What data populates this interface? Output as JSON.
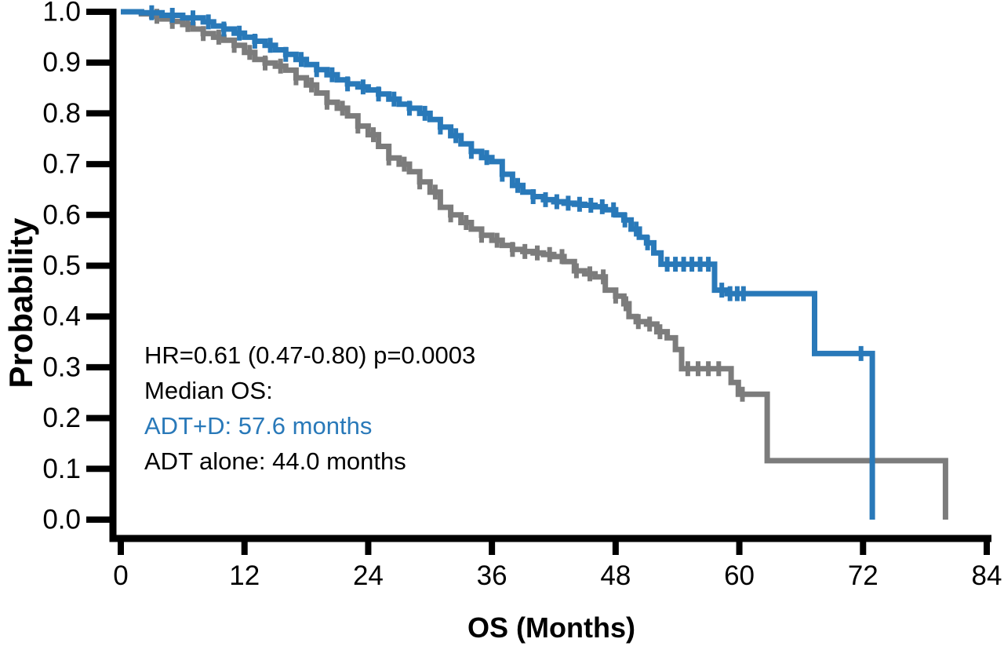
{
  "figure": {
    "background_color": "#ffffff",
    "axis_color": "#000000"
  },
  "annotation": {
    "hr_line": "HR=0.61 (0.47-0.80) p=0.0003",
    "median_heading": "Median OS:",
    "median_adt_d": "ADT+D: 57.6 months",
    "median_adt_alone": "ADT alone: 44.0 months"
  },
  "chart_data": {
    "type": "line",
    "subtype": "kaplan-meier-step",
    "title": "",
    "xlabel": "OS (Months)",
    "ylabel": "Probability",
    "xlim": [
      0,
      84
    ],
    "ylim": [
      0.0,
      1.0
    ],
    "grid": false,
    "x_tick_labels": [
      "0",
      "12",
      "24",
      "36",
      "48",
      "60",
      "72",
      "84"
    ],
    "y_tick_labels": [
      "1.0",
      "0.9",
      "0.8",
      "0.7",
      "0.6",
      "0.5",
      "0.4",
      "0.3",
      "0.2",
      "0.1",
      "0.0"
    ],
    "hazard_ratio_text": "HR=0.61 (0.47-0.80)",
    "p_value_text": "p=0.0003",
    "series": [
      {
        "name": "ADT+D",
        "color": "#2979b9",
        "median_os_months": 57.6,
        "points": [
          [
            0,
            1.0
          ],
          [
            2,
            0.998
          ],
          [
            4,
            0.993
          ],
          [
            6,
            0.988
          ],
          [
            8,
            0.98
          ],
          [
            9,
            0.972
          ],
          [
            10,
            0.966
          ],
          [
            11,
            0.958
          ],
          [
            12,
            0.95
          ],
          [
            13,
            0.942
          ],
          [
            14,
            0.934
          ],
          [
            15,
            0.925
          ],
          [
            16,
            0.916
          ],
          [
            17,
            0.906
          ],
          [
            18,
            0.896
          ],
          [
            19,
            0.886
          ],
          [
            20,
            0.876
          ],
          [
            21,
            0.866
          ],
          [
            22,
            0.858
          ],
          [
            23,
            0.852
          ],
          [
            24,
            0.846
          ],
          [
            25,
            0.838
          ],
          [
            26,
            0.828
          ],
          [
            27,
            0.818
          ],
          [
            28,
            0.81
          ],
          [
            29,
            0.8
          ],
          [
            30,
            0.788
          ],
          [
            31,
            0.773
          ],
          [
            32,
            0.756
          ],
          [
            33,
            0.74
          ],
          [
            34,
            0.725
          ],
          [
            35,
            0.713
          ],
          [
            36,
            0.705
          ],
          [
            37,
            0.68
          ],
          [
            38,
            0.658
          ],
          [
            39,
            0.645
          ],
          [
            40,
            0.636
          ],
          [
            41,
            0.63
          ],
          [
            42,
            0.626
          ],
          [
            43,
            0.623
          ],
          [
            44,
            0.621
          ],
          [
            45,
            0.619
          ],
          [
            46,
            0.616
          ],
          [
            47,
            0.61
          ],
          [
            48,
            0.6
          ],
          [
            48.8,
            0.59
          ],
          [
            49.5,
            0.572
          ],
          [
            50.3,
            0.556
          ],
          [
            51,
            0.545
          ],
          [
            51.7,
            0.525
          ],
          [
            52.4,
            0.503
          ],
          [
            57.6,
            0.452
          ],
          [
            58.8,
            0.445
          ],
          [
            67.3,
            0.327
          ],
          [
            72.9,
            0.0
          ]
        ],
        "censor_marks_months": [
          3,
          5,
          7,
          8.5,
          10,
          11.5,
          13,
          14.5,
          16,
          17.5,
          19,
          20.5,
          22,
          23.5,
          25,
          26.5,
          28,
          29.5,
          31,
          32.5,
          34,
          35.5,
          37,
          38.5,
          40,
          41.2,
          42.3,
          43.4,
          44.5,
          45.6,
          46.7,
          47.8,
          48.9,
          50,
          51.1,
          53,
          53.8,
          54.6,
          55.4,
          56.2,
          57,
          58.3,
          59.1,
          59.8,
          60.4,
          71.8
        ]
      },
      {
        "name": "ADT alone",
        "color": "#7c7c7c",
        "median_os_months": 44.0,
        "points": [
          [
            0,
            1.0
          ],
          [
            2,
            0.996
          ],
          [
            3,
            0.991
          ],
          [
            4,
            0.986
          ],
          [
            5,
            0.981
          ],
          [
            6,
            0.975
          ],
          [
            7,
            0.966
          ],
          [
            8,
            0.957
          ],
          [
            9,
            0.95
          ],
          [
            10,
            0.944
          ],
          [
            11,
            0.934
          ],
          [
            12,
            0.92
          ],
          [
            13,
            0.906
          ],
          [
            14,
            0.899
          ],
          [
            15,
            0.893
          ],
          [
            16,
            0.885
          ],
          [
            17,
            0.87
          ],
          [
            18,
            0.856
          ],
          [
            19,
            0.84
          ],
          [
            20,
            0.822
          ],
          [
            21,
            0.81
          ],
          [
            22,
            0.795
          ],
          [
            23,
            0.775
          ],
          [
            24,
            0.758
          ],
          [
            25,
            0.735
          ],
          [
            26,
            0.712
          ],
          [
            27,
            0.7
          ],
          [
            28,
            0.685
          ],
          [
            29,
            0.665
          ],
          [
            30,
            0.645
          ],
          [
            31,
            0.615
          ],
          [
            32,
            0.6
          ],
          [
            33,
            0.585
          ],
          [
            34,
            0.572
          ],
          [
            35,
            0.56
          ],
          [
            36,
            0.55
          ],
          [
            37,
            0.54
          ],
          [
            38,
            0.532
          ],
          [
            39,
            0.528
          ],
          [
            40,
            0.525
          ],
          [
            41,
            0.522
          ],
          [
            42,
            0.518
          ],
          [
            43,
            0.508
          ],
          [
            44,
            0.49
          ],
          [
            45,
            0.484
          ],
          [
            46,
            0.478
          ],
          [
            47,
            0.452
          ],
          [
            48,
            0.44
          ],
          [
            48.8,
            0.425
          ],
          [
            49.3,
            0.4
          ],
          [
            50,
            0.39
          ],
          [
            51,
            0.385
          ],
          [
            52,
            0.37
          ],
          [
            53,
            0.358
          ],
          [
            53.8,
            0.335
          ],
          [
            54.4,
            0.297
          ],
          [
            59.2,
            0.27
          ],
          [
            59.9,
            0.247
          ],
          [
            62.7,
            0.116
          ],
          [
            80.0,
            0.0
          ]
        ],
        "censor_marks_months": [
          3.5,
          5,
          6.5,
          8,
          9.5,
          11,
          12.5,
          14,
          15.5,
          17,
          18.5,
          20,
          21.5,
          23,
          24.5,
          26,
          27.5,
          29,
          30.5,
          32,
          33.5,
          35,
          36.5,
          38,
          39.2,
          40.4,
          41.6,
          42.8,
          44.2,
          45.5,
          46.8,
          48,
          49,
          50.2,
          51.3,
          52.3,
          55,
          56,
          57,
          58,
          60.3
        ]
      }
    ]
  }
}
